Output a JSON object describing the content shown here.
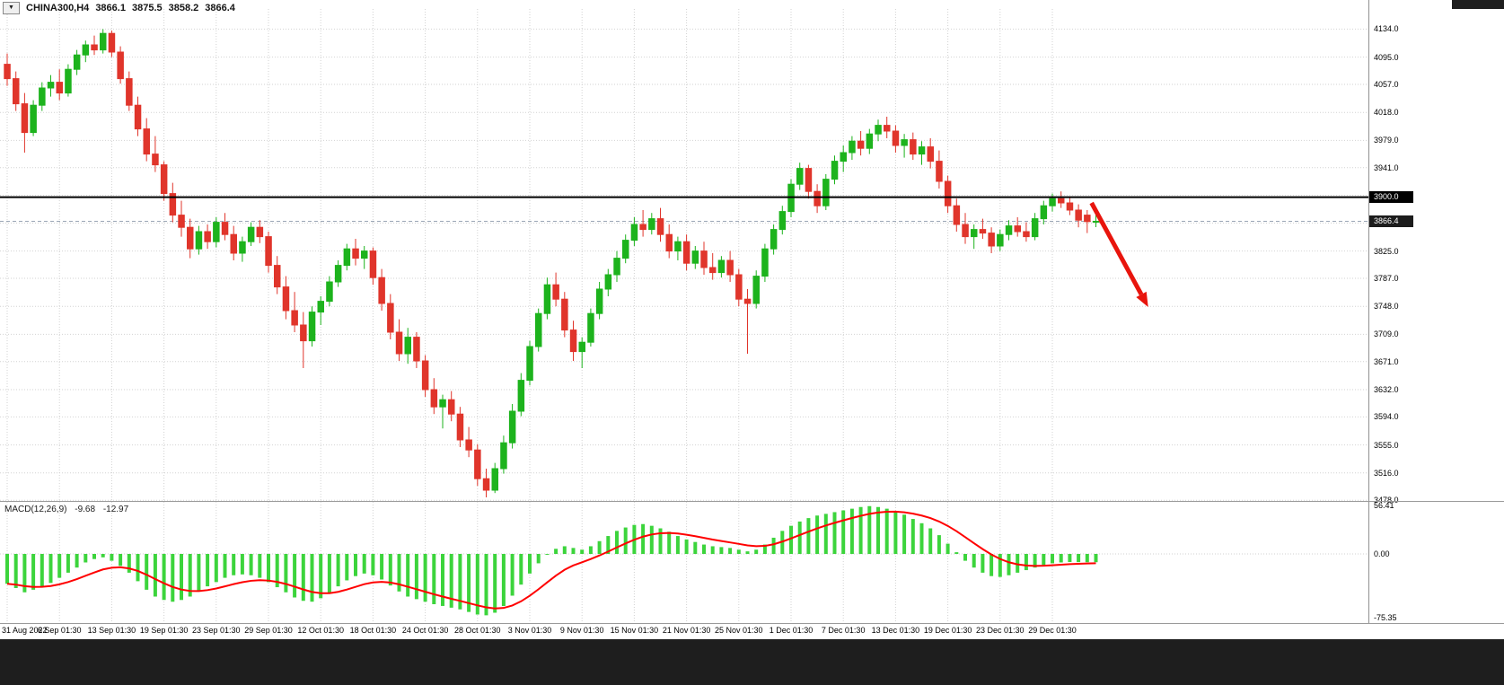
{
  "symbol_info": {
    "dropdown_icon": "▼",
    "title": "CHINA300,H4",
    "open": "3866.1",
    "high": "3875.5",
    "low": "3858.2",
    "close": "3866.4"
  },
  "price_axis": {
    "line_label": "3900.0",
    "current_label": "3866.4"
  },
  "colors": {
    "bull": "#1db31d",
    "bear": "#e0352b",
    "histogram": "#3cd43c",
    "signal": "#ff0000",
    "grid": "#d2d2d2",
    "hline": "#000000",
    "bid_line": "#9aa6b5",
    "arrow": "#e8150d",
    "axis_text": "#000000"
  },
  "chart_data": {
    "type": "candlestick",
    "title": "CHINA300,H4",
    "symbol": "CHINA300",
    "timeframe": "H4",
    "y_range": [
      3477,
      4162
    ],
    "y_tick_labels": [
      "4134.0",
      "4095.0",
      "4057.0",
      "4018.0",
      "3979.0",
      "3941.0",
      "3825.0",
      "3787.0",
      "3748.0",
      "3709.0",
      "3671.0",
      "3632.0",
      "3594.0",
      "3555.0",
      "3516.0",
      "3478.0"
    ],
    "y_grid_hidden": [
      3902.4,
      3863.8
    ],
    "x_tick_labels": [
      "31 Aug 2022",
      "6 Sep 01:30",
      "13 Sep 01:30",
      "19 Sep 01:30",
      "23 Sep 01:30",
      "29 Sep 01:30",
      "12 Oct 01:30",
      "18 Oct 01:30",
      "24 Oct 01:30",
      "28 Oct 01:30",
      "3 Nov 01:30",
      "9 Nov 01:30",
      "15 Nov 01:30",
      "21 Nov 01:30",
      "25 Nov 01:30",
      "1 Dec 01:30",
      "7 Dec 01:30",
      "13 Dec 01:30",
      "19 Dec 01:30",
      "23 Dec 01:30",
      "29 Dec 01:30"
    ],
    "hline": 3900.0,
    "current_price": 3866.4,
    "arrow": {
      "from_bar": 124.5,
      "from_price": 3892,
      "to_bar": 131,
      "to_price": 3747
    },
    "ohlc": [
      [
        4085,
        4100,
        4055,
        4065
      ],
      [
        4065,
        4075,
        4020,
        4030
      ],
      [
        4030,
        4045,
        3962,
        3990
      ],
      [
        3990,
        4035,
        3985,
        4028
      ],
      [
        4028,
        4060,
        4020,
        4052
      ],
      [
        4052,
        4070,
        4040,
        4060
      ],
      [
        4060,
        4078,
        4035,
        4045
      ],
      [
        4045,
        4085,
        4040,
        4078
      ],
      [
        4078,
        4105,
        4070,
        4098
      ],
      [
        4098,
        4118,
        4088,
        4112
      ],
      [
        4112,
        4125,
        4098,
        4105
      ],
      [
        4105,
        4134,
        4100,
        4128
      ],
      [
        4128,
        4132,
        4095,
        4102
      ],
      [
        4102,
        4110,
        4058,
        4065
      ],
      [
        4065,
        4075,
        4020,
        4028
      ],
      [
        4028,
        4040,
        3985,
        3995
      ],
      [
        3995,
        4010,
        3950,
        3960
      ],
      [
        3960,
        3985,
        3935,
        3945
      ],
      [
        3945,
        3950,
        3895,
        3905
      ],
      [
        3905,
        3920,
        3865,
        3875
      ],
      [
        3875,
        3895,
        3845,
        3858
      ],
      [
        3858,
        3870,
        3815,
        3828
      ],
      [
        3828,
        3860,
        3820,
        3852
      ],
      [
        3852,
        3862,
        3828,
        3838
      ],
      [
        3838,
        3872,
        3830,
        3865
      ],
      [
        3865,
        3878,
        3840,
        3848
      ],
      [
        3848,
        3860,
        3812,
        3822
      ],
      [
        3822,
        3845,
        3810,
        3838
      ],
      [
        3838,
        3865,
        3832,
        3858
      ],
      [
        3858,
        3868,
        3836,
        3845
      ],
      [
        3845,
        3852,
        3795,
        3805
      ],
      [
        3805,
        3818,
        3765,
        3775
      ],
      [
        3775,
        3790,
        3730,
        3742
      ],
      [
        3742,
        3768,
        3712,
        3722
      ],
      [
        3722,
        3740,
        3662,
        3700
      ],
      [
        3700,
        3748,
        3692,
        3740
      ],
      [
        3740,
        3762,
        3722,
        3755
      ],
      [
        3755,
        3790,
        3748,
        3782
      ],
      [
        3782,
        3812,
        3775,
        3805
      ],
      [
        3805,
        3835,
        3798,
        3828
      ],
      [
        3828,
        3842,
        3805,
        3815
      ],
      [
        3815,
        3832,
        3800,
        3825
      ],
      [
        3825,
        3830,
        3778,
        3788
      ],
      [
        3788,
        3800,
        3742,
        3752
      ],
      [
        3752,
        3765,
        3702,
        3712
      ],
      [
        3712,
        3730,
        3672,
        3682
      ],
      [
        3682,
        3718,
        3668,
        3705
      ],
      [
        3705,
        3712,
        3662,
        3672
      ],
      [
        3672,
        3680,
        3622,
        3632
      ],
      [
        3632,
        3648,
        3598,
        3608
      ],
      [
        3608,
        3625,
        3578,
        3618
      ],
      [
        3618,
        3630,
        3588,
        3598
      ],
      [
        3598,
        3608,
        3552,
        3562
      ],
      [
        3562,
        3580,
        3538,
        3548
      ],
      [
        3548,
        3556,
        3498,
        3508
      ],
      [
        3508,
        3522,
        3482,
        3492
      ],
      [
        3492,
        3530,
        3488,
        3522
      ],
      [
        3522,
        3568,
        3515,
        3558
      ],
      [
        3558,
        3612,
        3550,
        3602
      ],
      [
        3602,
        3655,
        3595,
        3645
      ],
      [
        3645,
        3700,
        3638,
        3692
      ],
      [
        3692,
        3745,
        3685,
        3738
      ],
      [
        3738,
        3788,
        3730,
        3778
      ],
      [
        3778,
        3795,
        3748,
        3758
      ],
      [
        3758,
        3768,
        3705,
        3715
      ],
      [
        3715,
        3728,
        3672,
        3685
      ],
      [
        3685,
        3705,
        3662,
        3698
      ],
      [
        3698,
        3745,
        3692,
        3738
      ],
      [
        3738,
        3782,
        3730,
        3772
      ],
      [
        3772,
        3800,
        3762,
        3792
      ],
      [
        3792,
        3825,
        3782,
        3815
      ],
      [
        3815,
        3848,
        3808,
        3840
      ],
      [
        3840,
        3872,
        3832,
        3862
      ],
      [
        3862,
        3882,
        3845,
        3855
      ],
      [
        3855,
        3878,
        3848,
        3870
      ],
      [
        3870,
        3885,
        3838,
        3848
      ],
      [
        3848,
        3862,
        3815,
        3825
      ],
      [
        3825,
        3845,
        3812,
        3838
      ],
      [
        3838,
        3848,
        3798,
        3808
      ],
      [
        3808,
        3832,
        3800,
        3825
      ],
      [
        3825,
        3838,
        3792,
        3802
      ],
      [
        3802,
        3822,
        3785,
        3795
      ],
      [
        3795,
        3818,
        3788,
        3812
      ],
      [
        3812,
        3825,
        3782,
        3792
      ],
      [
        3792,
        3800,
        3748,
        3758
      ],
      [
        3758,
        3772,
        3682,
        3752
      ],
      [
        3752,
        3798,
        3745,
        3790
      ],
      [
        3790,
        3835,
        3782,
        3828
      ],
      [
        3828,
        3862,
        3820,
        3855
      ],
      [
        3855,
        3888,
        3848,
        3880
      ],
      [
        3880,
        3925,
        3872,
        3918
      ],
      [
        3918,
        3948,
        3910,
        3940
      ],
      [
        3940,
        3945,
        3898,
        3908
      ],
      [
        3908,
        3918,
        3878,
        3888
      ],
      [
        3888,
        3932,
        3882,
        3925
      ],
      [
        3925,
        3958,
        3918,
        3950
      ],
      [
        3950,
        3972,
        3935,
        3962
      ],
      [
        3962,
        3985,
        3952,
        3978
      ],
      [
        3978,
        3992,
        3958,
        3968
      ],
      [
        3968,
        3995,
        3960,
        3988
      ],
      [
        3988,
        4008,
        3978,
        4000
      ],
      [
        4000,
        4012,
        3982,
        3992
      ],
      [
        3992,
        4000,
        3962,
        3972
      ],
      [
        3972,
        3988,
        3955,
        3980
      ],
      [
        3980,
        3990,
        3952,
        3960
      ],
      [
        3960,
        3978,
        3945,
        3970
      ],
      [
        3970,
        3982,
        3940,
        3950
      ],
      [
        3950,
        3965,
        3912,
        3922
      ],
      [
        3922,
        3930,
        3878,
        3888
      ],
      [
        3888,
        3898,
        3852,
        3862
      ],
      [
        3862,
        3878,
        3835,
        3845
      ],
      [
        3845,
        3862,
        3828,
        3855
      ],
      [
        3855,
        3870,
        3842,
        3850
      ],
      [
        3850,
        3858,
        3822,
        3832
      ],
      [
        3832,
        3855,
        3825,
        3848
      ],
      [
        3848,
        3868,
        3840,
        3860
      ],
      [
        3860,
        3872,
        3845,
        3852
      ],
      [
        3852,
        3865,
        3838,
        3845
      ],
      [
        3845,
        3878,
        3840,
        3870
      ],
      [
        3870,
        3895,
        3862,
        3888
      ],
      [
        3888,
        3905,
        3880,
        3898
      ],
      [
        3898,
        3908,
        3885,
        3892
      ],
      [
        3892,
        3900,
        3875,
        3882
      ],
      [
        3882,
        3890,
        3858,
        3868
      ],
      [
        3875,
        3882,
        3850,
        3866
      ],
      [
        3866.1,
        3875.5,
        3858.2,
        3866.4
      ]
    ],
    "indicator": {
      "name": "MACD(12,26,9)",
      "type": "bar",
      "last_macd": "-9.68",
      "last_signal": "-12.97",
      "y_tick_labels": [
        "56.41",
        "0.00",
        "-75.35"
      ],
      "y_range": [
        -75.35,
        56.41
      ],
      "signal_ema_period": 9,
      "histogram": [
        -35,
        -40,
        -45,
        -42,
        -38,
        -34,
        -28,
        -22,
        -16,
        -10,
        -6,
        -4,
        -8,
        -14,
        -22,
        -32,
        -42,
        -50,
        -54,
        -56,
        -54,
        -50,
        -44,
        -38,
        -33,
        -28,
        -25,
        -24,
        -25,
        -28,
        -33,
        -39,
        -45,
        -51,
        -55,
        -56,
        -52,
        -46,
        -38,
        -31,
        -26,
        -23,
        -25,
        -30,
        -37,
        -44,
        -50,
        -53,
        -56,
        -59,
        -61,
        -63,
        -65,
        -68,
        -71,
        -72,
        -69,
        -61,
        -49,
        -36,
        -23,
        -11,
        -1,
        6,
        9,
        7,
        5,
        9,
        15,
        21,
        27,
        31,
        34,
        35,
        33,
        30,
        26,
        21,
        17,
        14,
        11,
        9,
        8,
        7,
        5,
        3,
        5,
        11,
        19,
        27,
        33,
        38,
        42,
        45,
        47,
        49,
        51,
        53,
        55,
        56,
        55,
        53,
        50,
        46,
        41,
        36,
        30,
        22,
        12,
        2,
        -8,
        -16,
        -22,
        -26,
        -27,
        -25,
        -22,
        -19,
        -16,
        -13,
        -11,
        -10,
        -9.5,
        -9.6,
        -9.7,
        -9.68
      ]
    }
  }
}
